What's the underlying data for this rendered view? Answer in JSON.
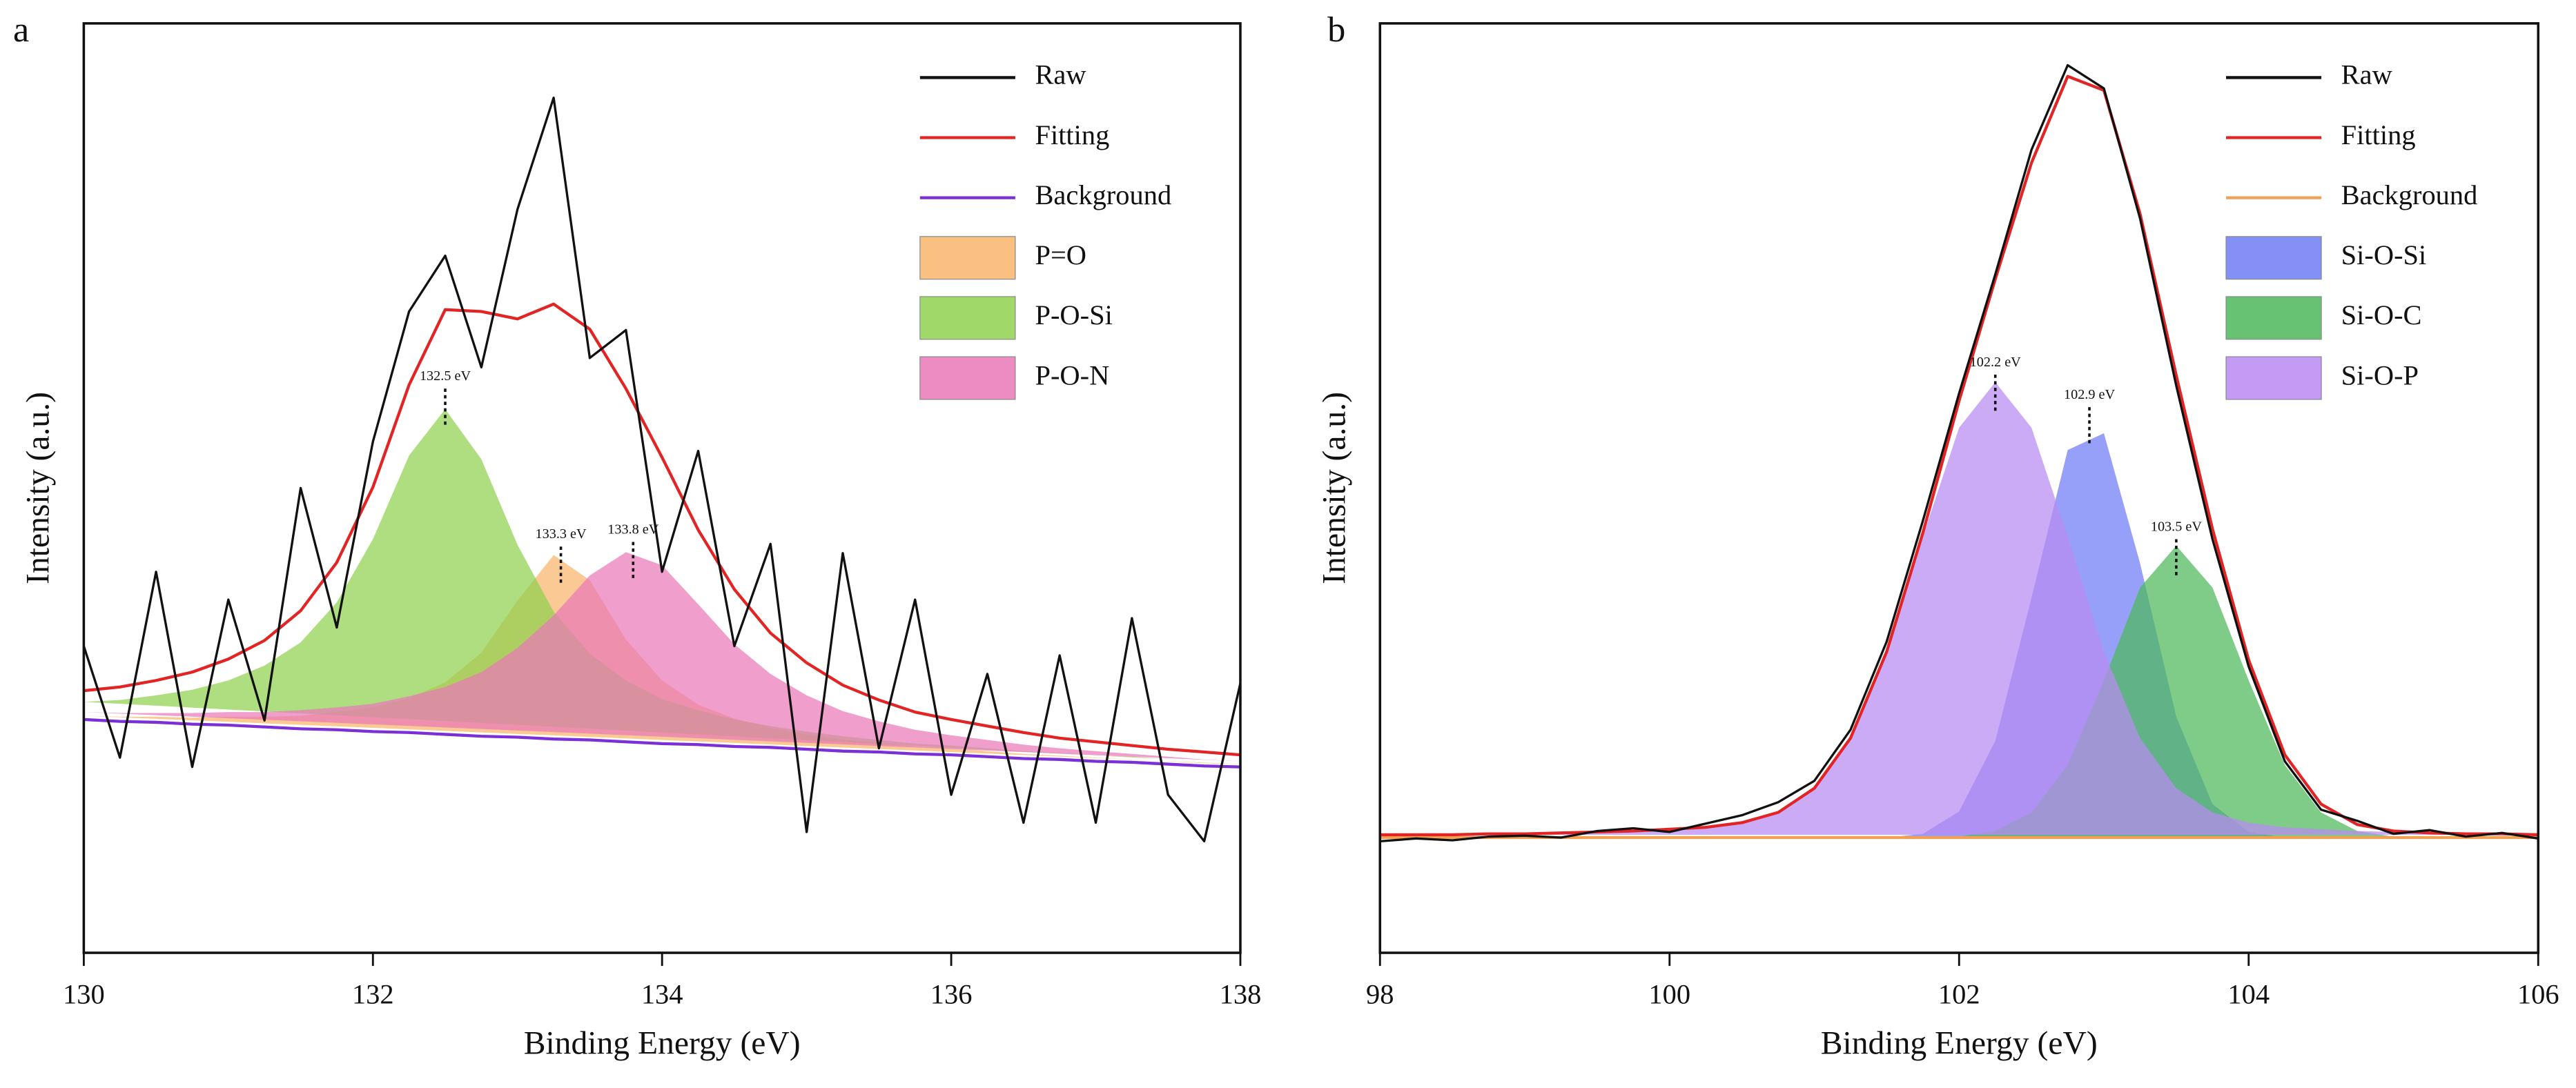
{
  "chart_data": [
    {
      "type": "line",
      "panel": "a",
      "xlabel": "Binding Energy (eV)",
      "ylabel": "Intensity (a.u.)",
      "xlim": [
        130,
        138
      ],
      "xticks": [
        130,
        132,
        134,
        136,
        138
      ],
      "ylim": [
        0,
        100
      ],
      "legend": "top right",
      "x": [
        130,
        130.25,
        130.5,
        130.75,
        131,
        131.25,
        131.5,
        131.75,
        132,
        132.25,
        132.5,
        132.75,
        133,
        133.25,
        133.5,
        133.75,
        134,
        134.25,
        134.5,
        134.75,
        135,
        135.25,
        135.5,
        135.75,
        136,
        136.25,
        136.5,
        136.75,
        137,
        137.25,
        137.5,
        137.75,
        138
      ],
      "series": [
        {
          "name": "Raw",
          "kind": "line",
          "color": "#111111",
          "values": [
            33,
            21,
            41,
            20,
            38,
            25,
            50,
            35,
            55,
            69,
            75,
            63,
            80,
            92,
            64,
            67,
            41,
            54,
            33,
            44,
            13,
            43,
            22,
            38,
            17,
            30,
            14,
            32,
            14,
            36,
            17,
            12,
            29
          ]
        },
        {
          "name": "Fitting",
          "kind": "line",
          "color": "#e32424",
          "values": [
            28.2,
            28.6,
            29.3,
            30.2,
            31.6,
            33.6,
            36.8,
            42.0,
            50.1,
            61.1,
            69.2,
            69.0,
            68.2,
            69.8,
            67.1,
            60.7,
            53.3,
            45.5,
            39.1,
            34.4,
            31.2,
            28.8,
            27.2,
            25.9,
            25.1,
            24.4,
            23.7,
            23.1,
            22.7,
            22.3,
            21.9,
            21.6,
            21.3
          ]
        },
        {
          "name": "Background",
          "kind": "line",
          "color": "#7b2fd6",
          "values": [
            25.1,
            24.9,
            24.8,
            24.6,
            24.5,
            24.3,
            24.1,
            24.0,
            23.8,
            23.7,
            23.5,
            23.3,
            23.2,
            23.0,
            22.9,
            22.7,
            22.5,
            22.4,
            22.2,
            22.1,
            21.9,
            21.7,
            21.6,
            21.4,
            21.3,
            21.1,
            20.9,
            20.8,
            20.6,
            20.5,
            20.3,
            20.1,
            20.0
          ]
        },
        {
          "name": "P=O",
          "kind": "area",
          "color": "#f9b56b",
          "values": [
            25.5,
            25.4,
            25.4,
            25.3,
            25.4,
            25.4,
            25.5,
            25.9,
            26.4,
            27.4,
            29.1,
            32.3,
            37.9,
            42.8,
            40.1,
            33.7,
            29.3,
            26.7,
            25.2,
            24.2,
            23.5,
            22.9,
            22.6,
            22.2,
            22.0,
            21.7,
            21.4,
            21.2,
            21.0,
            20.8,
            20.6,
            20.4,
            20.3
          ]
        },
        {
          "name": "P-O-Si",
          "kind": "area",
          "color": "#8fd14f",
          "values": [
            27.0,
            27.2,
            27.7,
            28.3,
            29.3,
            30.9,
            33.4,
            37.7,
            44.5,
            53.5,
            58.5,
            53.1,
            43.9,
            36.7,
            32.2,
            29.3,
            27.3,
            26.1,
            25.1,
            24.4,
            23.8,
            23.3,
            22.9,
            22.5,
            22.3,
            22.0,
            21.7,
            21.5,
            21.2,
            21.1,
            20.8,
            20.6,
            20.4
          ]
        },
        {
          "name": "P-O-N",
          "kind": "area",
          "color": "#ea78b8",
          "values": [
            25.9,
            25.8,
            25.8,
            25.8,
            25.9,
            25.9,
            26.1,
            26.4,
            26.8,
            27.6,
            28.6,
            30.2,
            32.8,
            36.3,
            40.6,
            43.1,
            41.7,
            37.5,
            33.2,
            30.0,
            27.7,
            26.0,
            24.9,
            24.0,
            23.4,
            22.9,
            22.4,
            22.0,
            21.7,
            21.4,
            21.1,
            20.8,
            20.6
          ]
        }
      ],
      "annotations": [
        {
          "text": "132.5 eV",
          "x": 132.5,
          "y": 60
        },
        {
          "text": "133.3 eV",
          "x": 133.3,
          "y": 43
        },
        {
          "text": "133.8 eV",
          "x": 133.8,
          "y": 43.5
        }
      ]
    },
    {
      "type": "line",
      "panel": "b",
      "xlabel": "Binding Energy (eV)",
      "ylabel": "Intensity (a.u.)",
      "xlim": [
        98,
        106
      ],
      "xticks": [
        98,
        100,
        102,
        104,
        106
      ],
      "ylim": [
        0,
        100
      ],
      "legend": "top right",
      "x": [
        98,
        98.25,
        98.5,
        98.75,
        99,
        99.25,
        99.5,
        99.75,
        100,
        100.25,
        100.5,
        100.75,
        101,
        101.25,
        101.5,
        101.75,
        102,
        102.25,
        102.5,
        102.75,
        103,
        103.25,
        103.5,
        103.75,
        104,
        104.25,
        104.5,
        104.75,
        105,
        105.25,
        105.5,
        105.75,
        106
      ],
      "series": [
        {
          "name": "Raw",
          "kind": "line",
          "color": "#111111",
          "values": [
            12.0,
            12.3,
            12.1,
            12.5,
            12.6,
            12.4,
            13.1,
            13.4,
            13.0,
            13.9,
            14.8,
            16.2,
            18.5,
            24.0,
            33.5,
            46.5,
            60.2,
            73.0,
            86.4,
            95.5,
            93.0,
            79.0,
            61.0,
            44.5,
            30.8,
            20.6,
            15.4,
            14.2,
            12.8,
            13.2,
            12.5,
            12.9,
            12.3
          ]
        },
        {
          "name": "Fitting",
          "kind": "line",
          "color": "#e32424",
          "values": [
            12.7,
            12.7,
            12.7,
            12.8,
            12.8,
            12.9,
            13.0,
            13.1,
            13.3,
            13.5,
            14.0,
            15.1,
            17.7,
            23.1,
            32.4,
            45.2,
            59.4,
            72.5,
            85.0,
            94.3,
            92.8,
            79.5,
            62.1,
            45.6,
            31.5,
            21.3,
            16.0,
            13.8,
            13.1,
            12.9,
            12.8,
            12.8,
            12.7
          ]
        },
        {
          "name": "Background",
          "kind": "line",
          "color": "#f2a154",
          "values": [
            12.4,
            12.4,
            12.4,
            12.4,
            12.4,
            12.4,
            12.4,
            12.4,
            12.4,
            12.4,
            12.4,
            12.4,
            12.4,
            12.4,
            12.4,
            12.4,
            12.4,
            12.4,
            12.4,
            12.4,
            12.4,
            12.4,
            12.4,
            12.4,
            12.4,
            12.4,
            12.4,
            12.4,
            12.4,
            12.4,
            12.4,
            12.4,
            12.4
          ]
        },
        {
          "name": "Si-O-Si",
          "kind": "area",
          "color": "#6f7cf5",
          "values": [
            12.4,
            12.4,
            12.4,
            12.4,
            12.4,
            12.4,
            12.4,
            12.4,
            12.4,
            12.4,
            12.4,
            12.4,
            12.4,
            12.4,
            12.4,
            12.8,
            15.2,
            22.8,
            38.2,
            54.1,
            55.9,
            41.9,
            25.4,
            16.0,
            13.0,
            12.4,
            12.4,
            12.4,
            12.4,
            12.4,
            12.4,
            12.4,
            12.4
          ]
        },
        {
          "name": "Si-O-C",
          "kind": "area",
          "color": "#4cb85a",
          "values": [
            12.4,
            12.4,
            12.4,
            12.4,
            12.4,
            12.4,
            12.4,
            12.4,
            12.4,
            12.4,
            12.4,
            12.4,
            12.4,
            12.4,
            12.4,
            12.4,
            12.5,
            13.1,
            15.1,
            20.2,
            29.3,
            39.3,
            43.8,
            39.3,
            29.3,
            20.2,
            15.1,
            13.1,
            12.5,
            12.4,
            12.4,
            12.4,
            12.4
          ]
        },
        {
          "name": "Si-O-P",
          "kind": "area",
          "color": "#b98af2",
          "values": [
            12.7,
            12.7,
            12.7,
            12.8,
            12.8,
            12.9,
            13.0,
            13.1,
            13.3,
            13.5,
            14.0,
            15.1,
            17.7,
            23.1,
            32.4,
            44.8,
            56.5,
            61.4,
            56.5,
            44.8,
            32.4,
            23.1,
            17.7,
            15.1,
            14.0,
            13.5,
            13.3,
            13.1,
            13.0,
            12.9,
            12.8,
            12.8,
            12.7
          ]
        }
      ],
      "annotations": [
        {
          "text": "102.2 eV",
          "x": 102.25,
          "y": 61.5
        },
        {
          "text": "102.9 eV",
          "x": 102.9,
          "y": 58
        },
        {
          "text": "103.5 eV",
          "x": 103.5,
          "y": 43.8
        }
      ]
    }
  ]
}
